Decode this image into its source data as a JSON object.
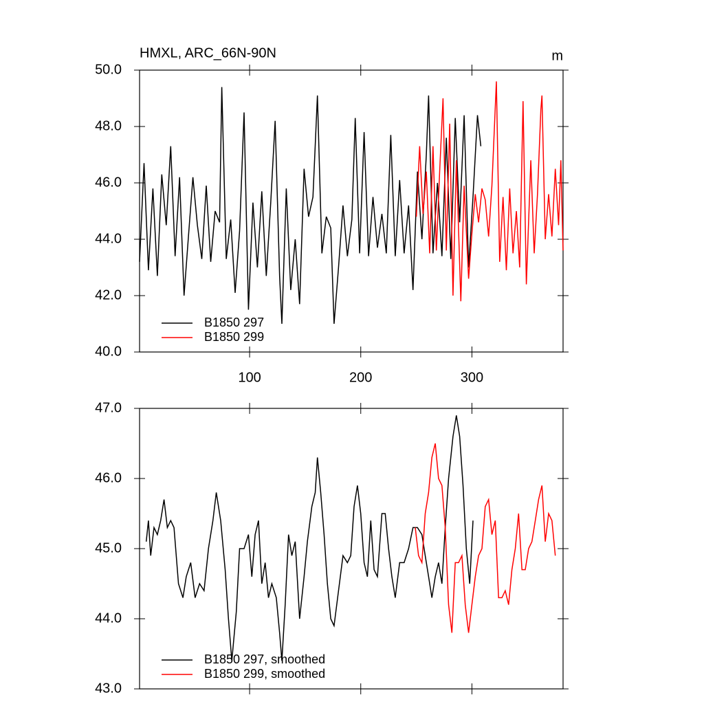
{
  "chart_data": [
    {
      "type": "line",
      "title": "HMXL, ARC_66N-90N",
      "units": "m",
      "xlim": [
        1,
        382
      ],
      "xticks": [
        100,
        200,
        300
      ],
      "xtick_labels": true,
      "ylim": [
        40,
        50
      ],
      "yticks": [
        {
          "value": 40,
          "label": "40.0"
        },
        {
          "value": 42,
          "label": "42.0"
        },
        {
          "value": 44,
          "label": "44.0"
        },
        {
          "value": 46,
          "label": "46.0"
        },
        {
          "value": 48,
          "label": "48.0"
        },
        {
          "value": 50,
          "label": "50.0"
        }
      ],
      "legend": "lower left",
      "series": [
        {
          "name": "B1850 297",
          "color": "#000000",
          "x": [
            1,
            5,
            9,
            13,
            17,
            21,
            25,
            29,
            33,
            37,
            41,
            45,
            49,
            53,
            57,
            61,
            65,
            69,
            73,
            75,
            79,
            83,
            87,
            91,
            95,
            99,
            103,
            107,
            111,
            115,
            119,
            123,
            127,
            129,
            133,
            137,
            141,
            145,
            149,
            153,
            157,
            161,
            165,
            169,
            173,
            176,
            180,
            184,
            188,
            192,
            195,
            199,
            203,
            207,
            211,
            215,
            219,
            223,
            227,
            231,
            235,
            239,
            243,
            247,
            251,
            255,
            259,
            261,
            265,
            269,
            273,
            277,
            281,
            285,
            289,
            293,
            297,
            301,
            305,
            308
          ],
          "values": [
            43.2,
            46.7,
            42.9,
            45.8,
            42.7,
            46.3,
            44.5,
            47.3,
            43.4,
            46.2,
            42.0,
            44.1,
            46.2,
            44.5,
            43.3,
            45.9,
            43.2,
            45.0,
            44.6,
            49.4,
            43.3,
            44.7,
            42.1,
            44.3,
            48.5,
            41.5,
            45.3,
            43.0,
            45.7,
            42.7,
            45.3,
            48.2,
            42.7,
            41.0,
            45.8,
            42.2,
            44.0,
            41.7,
            46.5,
            44.8,
            45.5,
            49.1,
            43.5,
            44.8,
            44.4,
            41.0,
            43.0,
            45.2,
            43.4,
            44.7,
            48.3,
            43.5,
            47.8,
            43.4,
            45.5,
            43.7,
            44.9,
            43.5,
            47.7,
            43.4,
            46.1,
            43.5,
            45.2,
            42.2,
            46.4,
            44.0,
            47.0,
            49.1,
            43.5,
            46.0,
            43.4,
            47.6,
            43.3,
            48.3,
            44.6,
            48.4,
            43.0,
            45.5,
            48.4,
            47.3
          ]
        },
        {
          "name": "B1850 299",
          "color": "#ff0000",
          "x": [
            250,
            253,
            256,
            259,
            262,
            265,
            268,
            271,
            274,
            277,
            280,
            283,
            286,
            290,
            293,
            297,
            300,
            303,
            306,
            309,
            312,
            315,
            318,
            322,
            325,
            328,
            331,
            334,
            337,
            340,
            343,
            346,
            349,
            353,
            356,
            359,
            362,
            363,
            366,
            369,
            372,
            375,
            378,
            380,
            382
          ],
          "values": [
            44.8,
            47.3,
            44.9,
            46.4,
            43.5,
            47.3,
            43.6,
            46.4,
            49.0,
            43.6,
            48.1,
            42.0,
            46.8,
            41.8,
            45.9,
            42.6,
            44.2,
            45.6,
            44.6,
            45.8,
            45.4,
            44.1,
            45.9,
            49.6,
            43.2,
            45.5,
            42.9,
            45.8,
            43.5,
            45.0,
            43.0,
            48.9,
            42.4,
            46.8,
            43.5,
            45.6,
            48.6,
            49.1,
            44.0,
            45.6,
            44.1,
            46.5,
            44.5,
            46.8,
            43.6
          ]
        }
      ]
    },
    {
      "type": "line",
      "xlim": [
        1,
        382
      ],
      "xticks": [
        100,
        200,
        300
      ],
      "xtick_labels": false,
      "ylim": [
        43,
        47
      ],
      "yticks": [
        {
          "value": 43,
          "label": "43.0"
        },
        {
          "value": 44,
          "label": "44.0"
        },
        {
          "value": 45,
          "label": "45.0"
        },
        {
          "value": 46,
          "label": "46.0"
        },
        {
          "value": 47,
          "label": "47.0"
        }
      ],
      "legend": "lower left",
      "series": [
        {
          "name": "B1850 297, smoothed",
          "color": "#000000",
          "x": [
            7,
            9,
            11,
            14,
            17,
            20,
            23,
            26,
            29,
            32,
            36,
            40,
            43,
            47,
            51,
            55,
            59,
            63,
            67,
            70,
            74,
            78,
            81,
            84,
            88,
            91,
            95,
            99,
            102,
            105,
            108,
            111,
            114,
            117,
            120,
            124,
            127,
            129,
            132,
            135,
            138,
            141,
            145,
            149,
            152,
            156,
            159,
            161,
            164,
            167,
            170,
            173,
            176,
            180,
            184,
            188,
            191,
            194,
            197,
            200,
            203,
            206,
            209,
            212,
            215,
            219,
            222,
            225,
            228,
            231,
            235,
            239,
            243,
            247,
            251,
            255,
            258,
            261,
            264,
            267,
            270,
            273,
            276,
            279,
            283,
            286,
            289,
            292,
            295,
            298,
            301
          ],
          "values": [
            45.1,
            45.4,
            44.9,
            45.3,
            45.2,
            45.4,
            45.7,
            45.3,
            45.4,
            45.3,
            44.5,
            44.3,
            44.6,
            44.8,
            44.3,
            44.5,
            44.4,
            45.0,
            45.4,
            45.8,
            45.4,
            44.7,
            44.0,
            43.4,
            44.1,
            45.0,
            45.0,
            45.2,
            44.6,
            45.2,
            45.4,
            44.5,
            44.8,
            44.3,
            44.5,
            44.3,
            43.8,
            43.4,
            44.2,
            45.2,
            44.9,
            45.1,
            44.0,
            44.6,
            45.1,
            45.6,
            45.8,
            46.3,
            45.8,
            45.2,
            44.5,
            44.0,
            43.9,
            44.4,
            44.9,
            44.8,
            44.9,
            45.6,
            45.9,
            45.5,
            44.8,
            44.6,
            45.4,
            44.7,
            44.6,
            45.5,
            45.5,
            45.0,
            44.6,
            44.3,
            44.8,
            44.8,
            45.0,
            45.3,
            45.3,
            45.2,
            44.9,
            44.6,
            44.3,
            44.6,
            44.8,
            44.5,
            45.3,
            46.0,
            46.6,
            46.9,
            46.6,
            45.9,
            45.0,
            44.5,
            45.4
          ]
        },
        {
          "name": "B1850 299, smoothed",
          "color": "#ff0000",
          "x": [
            249,
            252,
            255,
            258,
            261,
            264,
            267,
            270,
            273,
            276,
            279,
            282,
            285,
            288,
            291,
            294,
            297,
            300,
            303,
            306,
            309,
            312,
            315,
            318,
            321,
            324,
            327,
            330,
            333,
            336,
            339,
            342,
            345,
            348,
            351,
            354,
            357,
            360,
            363,
            366,
            369,
            372,
            375
          ],
          "values": [
            45.3,
            44.9,
            44.8,
            45.5,
            45.8,
            46.3,
            46.5,
            46.0,
            45.9,
            45.3,
            44.2,
            43.8,
            44.8,
            44.8,
            44.9,
            44.2,
            43.8,
            44.2,
            44.6,
            44.9,
            45.0,
            45.6,
            45.7,
            45.2,
            45.4,
            44.3,
            44.3,
            44.4,
            44.2,
            44.7,
            45.0,
            45.5,
            44.7,
            44.7,
            45.0,
            45.1,
            45.4,
            45.7,
            45.9,
            45.1,
            45.5,
            45.4,
            44.9
          ]
        }
      ]
    }
  ]
}
